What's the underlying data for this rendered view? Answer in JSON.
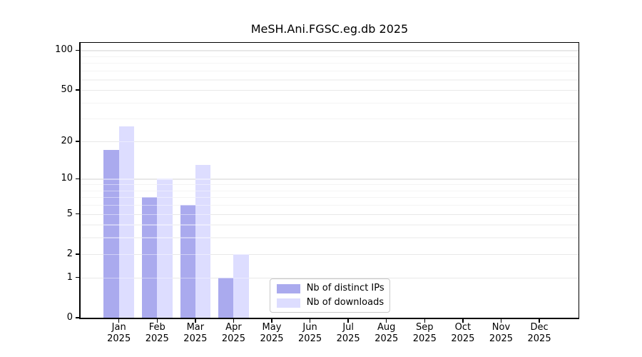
{
  "title": "MeSH.Ani.FGSC.eg.db 2025",
  "chart_data": {
    "type": "bar",
    "title": "MeSH.Ani.FGSC.eg.db 2025",
    "categories": [
      "Jan",
      "Feb",
      "Mar",
      "Apr",
      "May",
      "Jun",
      "Jul",
      "Aug",
      "Sep",
      "Oct",
      "Nov",
      "Dec"
    ],
    "year": "2025",
    "series": [
      {
        "name": "Nb of distinct IPs",
        "color": "#aaaaee",
        "values": [
          17,
          7,
          6,
          1,
          0,
          0,
          0,
          0,
          0,
          0,
          0,
          0
        ]
      },
      {
        "name": "Nb of downloads",
        "color": "#ddddff",
        "values": [
          26,
          10,
          13,
          2,
          0,
          0,
          0,
          0,
          0,
          0,
          0,
          0
        ]
      }
    ],
    "xlabel": "",
    "ylabel": "",
    "y_axis": {
      "scale": "log10(value+1)",
      "major_ticks": [
        0,
        1,
        2,
        5,
        10,
        20,
        50,
        100
      ],
      "minor_gridlines": [
        3,
        4,
        6,
        7,
        8,
        9,
        30,
        40,
        60,
        70,
        80,
        90
      ],
      "ylim": [
        0,
        112
      ]
    },
    "grid": "on",
    "legend": {
      "position": "lower-center",
      "entries": [
        "Nb of distinct IPs",
        "Nb of downloads"
      ]
    }
  }
}
